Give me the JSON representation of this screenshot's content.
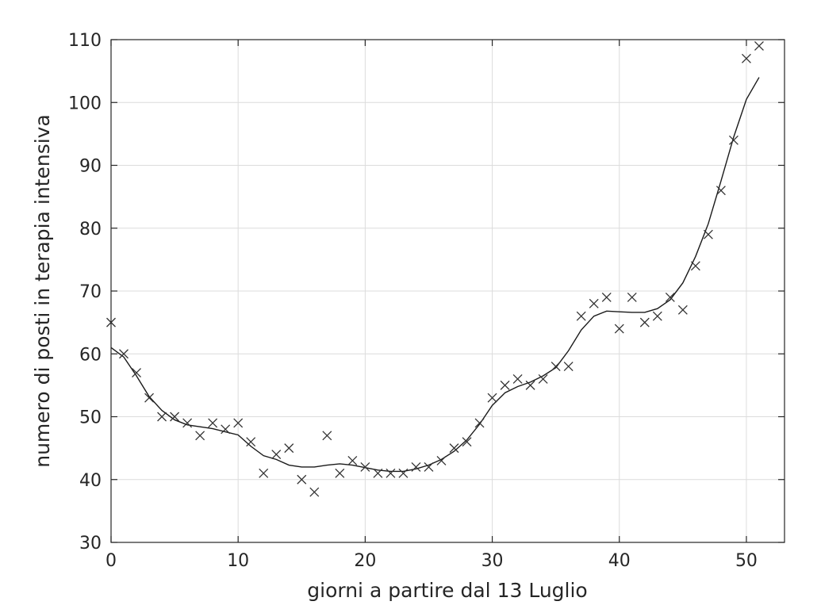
{
  "chart_data": {
    "type": "scatter",
    "title": "",
    "xlabel": "giorni a partire dal 13 Luglio",
    "ylabel": "numero di posti in terapia intensiva",
    "xlim": [
      0,
      53
    ],
    "ylim": [
      30,
      110
    ],
    "xticks": [
      0,
      10,
      20,
      30,
      40,
      50
    ],
    "yticks": [
      30,
      40,
      50,
      60,
      70,
      80,
      90,
      100,
      110
    ],
    "grid": true,
    "series": [
      {
        "marker": "x",
        "color": "#333333",
        "x": [
          0,
          1,
          2,
          3,
          4,
          5,
          6,
          7,
          8,
          9,
          10,
          11,
          12,
          13,
          14,
          15,
          16,
          17,
          18,
          19,
          20,
          21,
          22,
          23,
          24,
          25,
          26,
          27,
          28,
          29,
          30,
          31,
          32,
          33,
          34,
          35,
          36,
          37,
          38,
          39,
          40,
          41,
          42,
          43,
          44,
          45,
          46,
          47,
          48,
          49,
          50,
          51
        ],
        "y": [
          65,
          60,
          57,
          53,
          50,
          50,
          49,
          47,
          49,
          48,
          49,
          46,
          41,
          44,
          45,
          40,
          38,
          47,
          41,
          43,
          42,
          41,
          41,
          41,
          42,
          42,
          43,
          45,
          46,
          49,
          53,
          55,
          56,
          55,
          56,
          58,
          58,
          66,
          68,
          69,
          64,
          69,
          65,
          66,
          69,
          67,
          74,
          79,
          86,
          94,
          107,
          109
        ]
      },
      {
        "line": "solid",
        "color": "#1a1a1a",
        "x": [
          0,
          1,
          2,
          3,
          4,
          5,
          6,
          7,
          8,
          9,
          10,
          11,
          12,
          13,
          14,
          15,
          16,
          17,
          18,
          19,
          20,
          21,
          22,
          23,
          24,
          25,
          26,
          27,
          28,
          29,
          30,
          31,
          32,
          33,
          34,
          35,
          36,
          37,
          38,
          39,
          40,
          41,
          42,
          43,
          44,
          45,
          46,
          47,
          48,
          49,
          50,
          51
        ],
        "y": [
          61,
          59.5,
          56.5,
          53.2,
          51,
          49.5,
          48.7,
          48.4,
          48.1,
          47.6,
          47.1,
          45.3,
          43.8,
          43.2,
          42.3,
          42,
          42,
          42.3,
          42.5,
          42.3,
          41.9,
          41.5,
          41.3,
          41.3,
          41.7,
          42.3,
          43.2,
          44.5,
          46.3,
          48.8,
          51.8,
          53.8,
          54.8,
          55.5,
          56.5,
          57.8,
          60.5,
          63.8,
          66,
          66.8,
          66.7,
          66.6,
          66.6,
          67.2,
          68.6,
          71.3,
          75.5,
          80.7,
          87.5,
          94.5,
          100.5,
          104
        ]
      }
    ]
  }
}
